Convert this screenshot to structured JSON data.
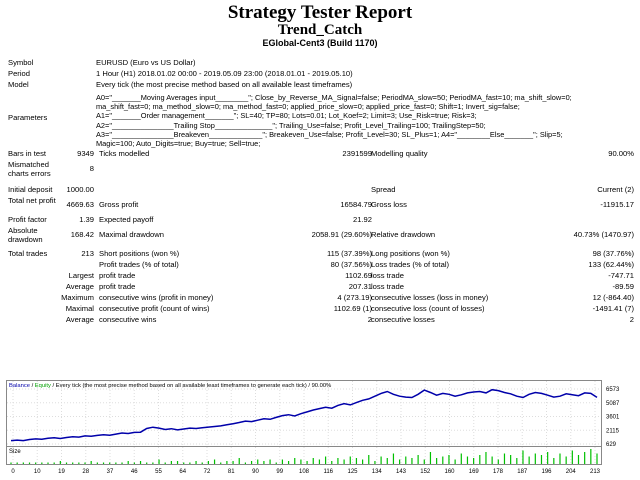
{
  "header": {
    "title": "Strategy Tester Report",
    "ea_name": "Trend_Catch",
    "broker": "EGlobal-Cent3 (Build 1170)"
  },
  "info": {
    "symbol_label": "Symbol",
    "symbol_value": "EURUSD (Euro vs US Dollar)",
    "period_label": "Period",
    "period_value": "1 Hour (H1) 2018.01.02 00:00 - 2019.05.09 23:00 (2018.01.01 - 2019.05.10)",
    "model_label": "Model",
    "model_value": "Every tick (the most precise method based on all available least timeframes)",
    "params_label": "Parameters",
    "params_lines": [
      "A0=\"_______Moving Averages input________\"; Close_by_Reverse_MA_Signal=false; PeriodMA_slow=50; PeriodMA_fast=10; ma_shift_slow=0;",
      "ma_shift_fast=0; ma_method_slow=0; ma_method_fast=0; applied_price_slow=0; applied_price_fast=0; Shift=1; Invert_sig=false;",
      "A1=\"_______Order management_______\"; SL=40; TP=80; Lots=0.01; Lot_Koef=2; Limit=3; Use_Risk=true; Risk=3;",
      "A2=\"_______________Trailing Stop______________\"; Trailing_Use=false; Profit_Level_Trailing=100; TrailingStep=50;",
      "A3=\"_______________Breakeven_____________\"; Breakeven_Use=false; Profit_Level=30; SL_Plus=1; A4=\"________Else_______\"; Slip=5;",
      "Magic=100; Auto_Digits=true; Buy=true; Sell=true;"
    ]
  },
  "stats": {
    "bars_label": "Bars in test",
    "bars_value": "9349",
    "ticks_label": "Ticks modelled",
    "ticks_value": "2391599",
    "quality_label": "Modelling quality",
    "quality_value": "90.00%",
    "mismatch_label": "Mismatched charts errors",
    "mismatch_value": "8",
    "deposit_label": "Initial deposit",
    "deposit_value": "1000.00",
    "spread_label": "Spread",
    "spread_value": "Current (2)",
    "netprofit_label": "Total net profit",
    "netprofit_value": "4669.63",
    "grossprofit_label": "Gross profit",
    "grossprofit_value": "16584.79",
    "grossloss_label": "Gross loss",
    "grossloss_value": "-11915.17",
    "pf_label": "Profit factor",
    "pf_value": "1.39",
    "payoff_label": "Expected payoff",
    "payoff_value": "21.92",
    "absdd_label": "Absolute drawdown",
    "absdd_value": "168.42",
    "maxdd_label": "Maximal drawdown",
    "maxdd_value": "2058.91 (29.60%)",
    "reldd_label": "Relative drawdown",
    "reldd_value": "40.73% (1470.97)",
    "trades_label": "Total trades",
    "trades_value": "213",
    "short_label": "Short positions (won %)",
    "short_value": "115 (37.39%)",
    "long_label": "Long positions (won %)",
    "long_value": "98 (37.76%)",
    "ptrades_label": "Profit trades (% of total)",
    "ptrades_value": "80 (37.56%)",
    "ltrades_label": "Loss trades (% of total)",
    "ltrades_value": "133 (62.44%)",
    "largest_label": "Largest",
    "largest_profit_label": "profit trade",
    "largest_profit_value": "1102.69",
    "largest_loss_label": "loss trade",
    "largest_loss_value": "-747.71",
    "average_label": "Average",
    "avg_profit_label": "profit trade",
    "avg_profit_value": "207.31",
    "avg_loss_label": "loss trade",
    "avg_loss_value": "-89.59",
    "maximum_label": "Maximum",
    "maxwins_label": "consecutive wins (profit in money)",
    "maxwins_value": "4 (273.19)",
    "maxlosses_label": "consecutive losses (loss in money)",
    "maxlosses_value": "12 (-864.40)",
    "maximal_label": "Maximal",
    "maxprofit_label": "consecutive profit (count of wins)",
    "maxprofit_value": "1102.69 (1)",
    "maxloss_label": "consecutive loss (count of losses)",
    "maxloss_value": "-1491.41 (7)",
    "average2_label": "Average",
    "avgwins_label": "consecutive wins",
    "avgwins_value": "2",
    "avglosses_label": "consecutive losses",
    "avglosses_value": "2"
  },
  "chart_legend": {
    "balance": "Balance",
    "sep": " / ",
    "equity": "Equity",
    "rest": " / Every tick (the most precise method based on all available least timeframes to generate each tick) / 90.00%",
    "size_label": "Size"
  },
  "colors": {
    "balance": "#0000aa",
    "equity": "#00a000",
    "volume": "#00c000"
  },
  "chart_data": {
    "type": "line",
    "series": [
      {
        "name": "Balance",
        "values": [
          1000,
          1050,
          1000,
          1120,
          1180,
          1150,
          1240,
          1300,
          1220,
          1330,
          1420,
          1380,
          1500,
          1460,
          1560,
          1620,
          1580,
          1700,
          1820,
          1760,
          1880,
          1900,
          2300,
          2450,
          2350,
          2200,
          2280,
          2150,
          2250,
          2350,
          2300,
          2380,
          2460,
          2520,
          2580,
          2700,
          2820,
          2950,
          3100,
          3050,
          3200,
          3350,
          3300,
          3500,
          3700,
          3800,
          3650,
          3900,
          4100,
          4300,
          4450,
          4600,
          4500,
          4800,
          5000,
          4850,
          5100,
          5350,
          5500,
          5800,
          6100,
          6300,
          6000,
          5800,
          5700,
          5650,
          6000,
          6450,
          6200,
          5900,
          6100,
          6000,
          5800,
          5950,
          6150,
          6250,
          6300,
          6150,
          6500,
          6400,
          6200,
          6050,
          5800,
          5650,
          6000,
          6200,
          6100,
          5900,
          5700,
          5800,
          6050,
          5950,
          5850,
          6150,
          6100,
          5669
        ]
      }
    ],
    "y_ticks": [
      "6573",
      "5087",
      "3601",
      "2115",
      "629"
    ],
    "x_ticks": [
      "0",
      "10",
      "19",
      "28",
      "37",
      "46",
      "55",
      "64",
      "72",
      "81",
      "90",
      "99",
      "108",
      "116",
      "125",
      "134",
      "143",
      "152",
      "160",
      "169",
      "178",
      "187",
      "196",
      "204",
      "213"
    ],
    "ylim": [
      629,
      6573
    ],
    "volume": {
      "values": [
        1,
        1,
        1,
        1,
        1,
        1,
        1,
        1,
        2,
        1,
        1,
        1,
        1,
        2,
        1,
        1,
        1,
        1,
        1,
        2,
        1,
        2,
        1,
        1,
        3,
        1,
        2,
        2,
        1,
        1,
        2,
        1,
        2,
        3,
        1,
        2,
        2,
        4,
        1,
        2,
        3,
        2,
        3,
        1,
        3,
        2,
        4,
        3,
        2,
        4,
        3,
        5,
        2,
        4,
        3,
        5,
        4,
        3,
        6,
        2,
        5,
        4,
        7,
        3,
        5,
        4,
        6,
        3,
        8,
        4,
        5,
        6,
        3,
        7,
        5,
        4,
        6,
        8,
        5,
        3,
        7,
        6,
        4,
        9,
        5,
        7,
        6,
        8,
        4,
        7,
        5,
        9,
        6,
        8,
        10,
        7
      ],
      "max": 10
    }
  }
}
